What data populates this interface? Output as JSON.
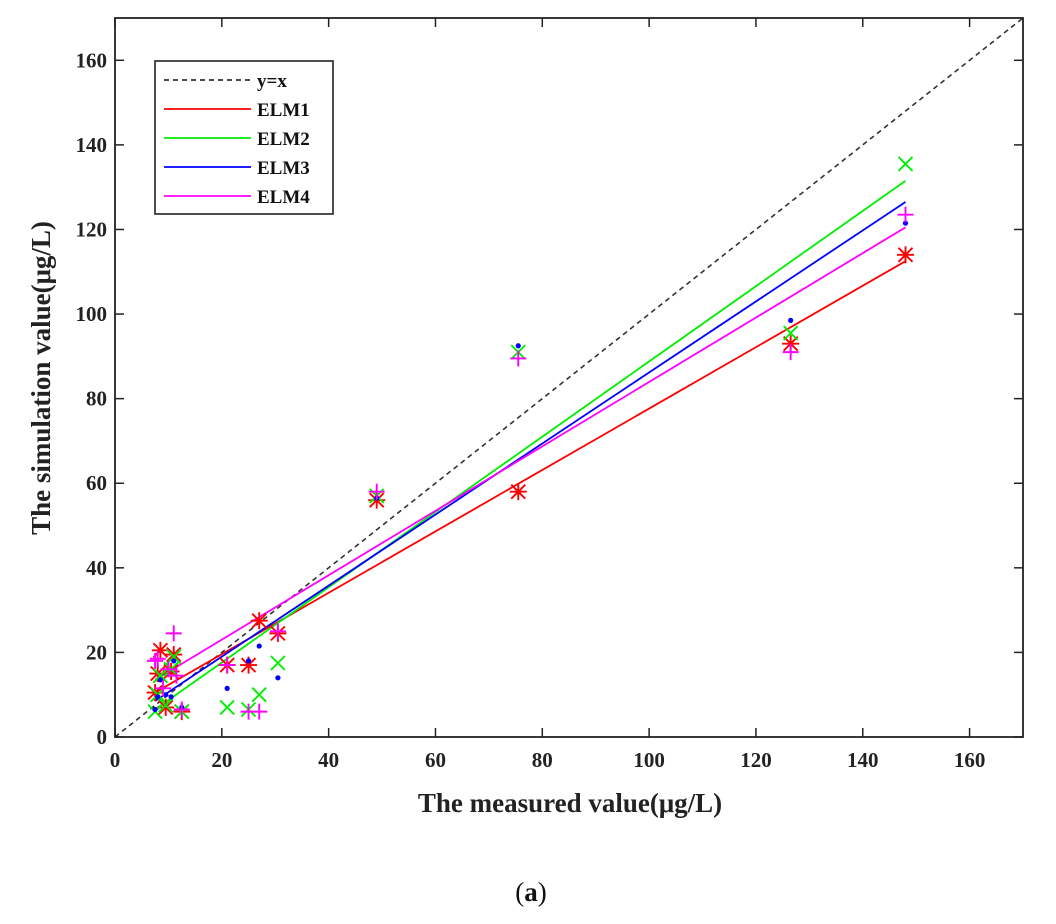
{
  "chart_data": {
    "type": "scatter",
    "xlabel": "The measured value(μg/L)",
    "ylabel": "The simulation value(μg/L)",
    "panel_label": "a",
    "xlim": [
      0,
      170
    ],
    "ylim": [
      0,
      170
    ],
    "xticks": [
      0,
      20,
      40,
      60,
      80,
      100,
      120,
      140,
      160
    ],
    "yticks": [
      0,
      20,
      40,
      60,
      80,
      100,
      120,
      140,
      160
    ],
    "grid": false,
    "legend_position": "top-left",
    "reference_line": {
      "name": "y=x",
      "color": "#333333",
      "style": "dashed"
    },
    "series": [
      {
        "name": "ELM1",
        "color": "#ff0000",
        "marker": "asterisk",
        "fit_line": {
          "x": [
            7.5,
            148
          ],
          "y": [
            10.5,
            112.5
          ]
        },
        "points": [
          [
            7.5,
            10.5
          ],
          [
            8,
            15
          ],
          [
            8.5,
            20.5
          ],
          [
            9.5,
            7
          ],
          [
            10.5,
            15.5
          ],
          [
            11,
            19.5
          ],
          [
            12.5,
            6
          ],
          [
            21,
            17
          ],
          [
            25,
            17
          ],
          [
            27,
            27.5
          ],
          [
            30.5,
            24.5
          ],
          [
            49,
            56
          ],
          [
            75.5,
            58
          ],
          [
            126.5,
            93
          ],
          [
            148,
            114
          ]
        ]
      },
      {
        "name": "ELM2",
        "color": "#00ee00",
        "marker": "x",
        "fit_line": {
          "x": [
            7.5,
            148
          ],
          "y": [
            6.5,
            131.5
          ]
        },
        "points": [
          [
            7.5,
            6
          ],
          [
            8,
            10
          ],
          [
            8.5,
            14.5
          ],
          [
            9.5,
            7.5
          ],
          [
            10.5,
            16
          ],
          [
            11,
            19
          ],
          [
            12.5,
            6
          ],
          [
            21,
            7
          ],
          [
            25,
            6.5
          ],
          [
            27,
            10
          ],
          [
            30.5,
            17.5
          ],
          [
            49,
            57
          ],
          [
            75.5,
            91
          ],
          [
            126.5,
            95.5
          ],
          [
            148,
            135.5
          ]
        ]
      },
      {
        "name": "ELM3",
        "color": "#0000ff",
        "marker": "dot",
        "fit_line": {
          "x": [
            7.5,
            148
          ],
          "y": [
            8.5,
            126.5
          ]
        },
        "points": [
          [
            7.5,
            6.5
          ],
          [
            8,
            9.5
          ],
          [
            8.5,
            13.5
          ],
          [
            9.5,
            10
          ],
          [
            10.5,
            9.5
          ],
          [
            11,
            18
          ],
          [
            12.5,
            7
          ],
          [
            21,
            11.5
          ],
          [
            25,
            18
          ],
          [
            27,
            21.5
          ],
          [
            30.5,
            14
          ],
          [
            49,
            56.5
          ],
          [
            75.5,
            92.5
          ],
          [
            126.5,
            98.5
          ],
          [
            148,
            121.5
          ]
        ]
      },
      {
        "name": "ELM4",
        "color": "#ff00ff",
        "marker": "plus",
        "fit_line": {
          "x": [
            7.5,
            148
          ],
          "y": [
            13.5,
            120.5
          ]
        },
        "points": [
          [
            7.5,
            18
          ],
          [
            8,
            18.5
          ],
          [
            9,
            11.5
          ],
          [
            10,
            16
          ],
          [
            11,
            24.5
          ],
          [
            11.5,
            14.5
          ],
          [
            12.5,
            6.5
          ],
          [
            21,
            17
          ],
          [
            25,
            6
          ],
          [
            27,
            6
          ],
          [
            30.5,
            25
          ],
          [
            49,
            58
          ],
          [
            75.5,
            89.5
          ],
          [
            126.5,
            91
          ],
          [
            148,
            123.5
          ]
        ]
      }
    ]
  }
}
